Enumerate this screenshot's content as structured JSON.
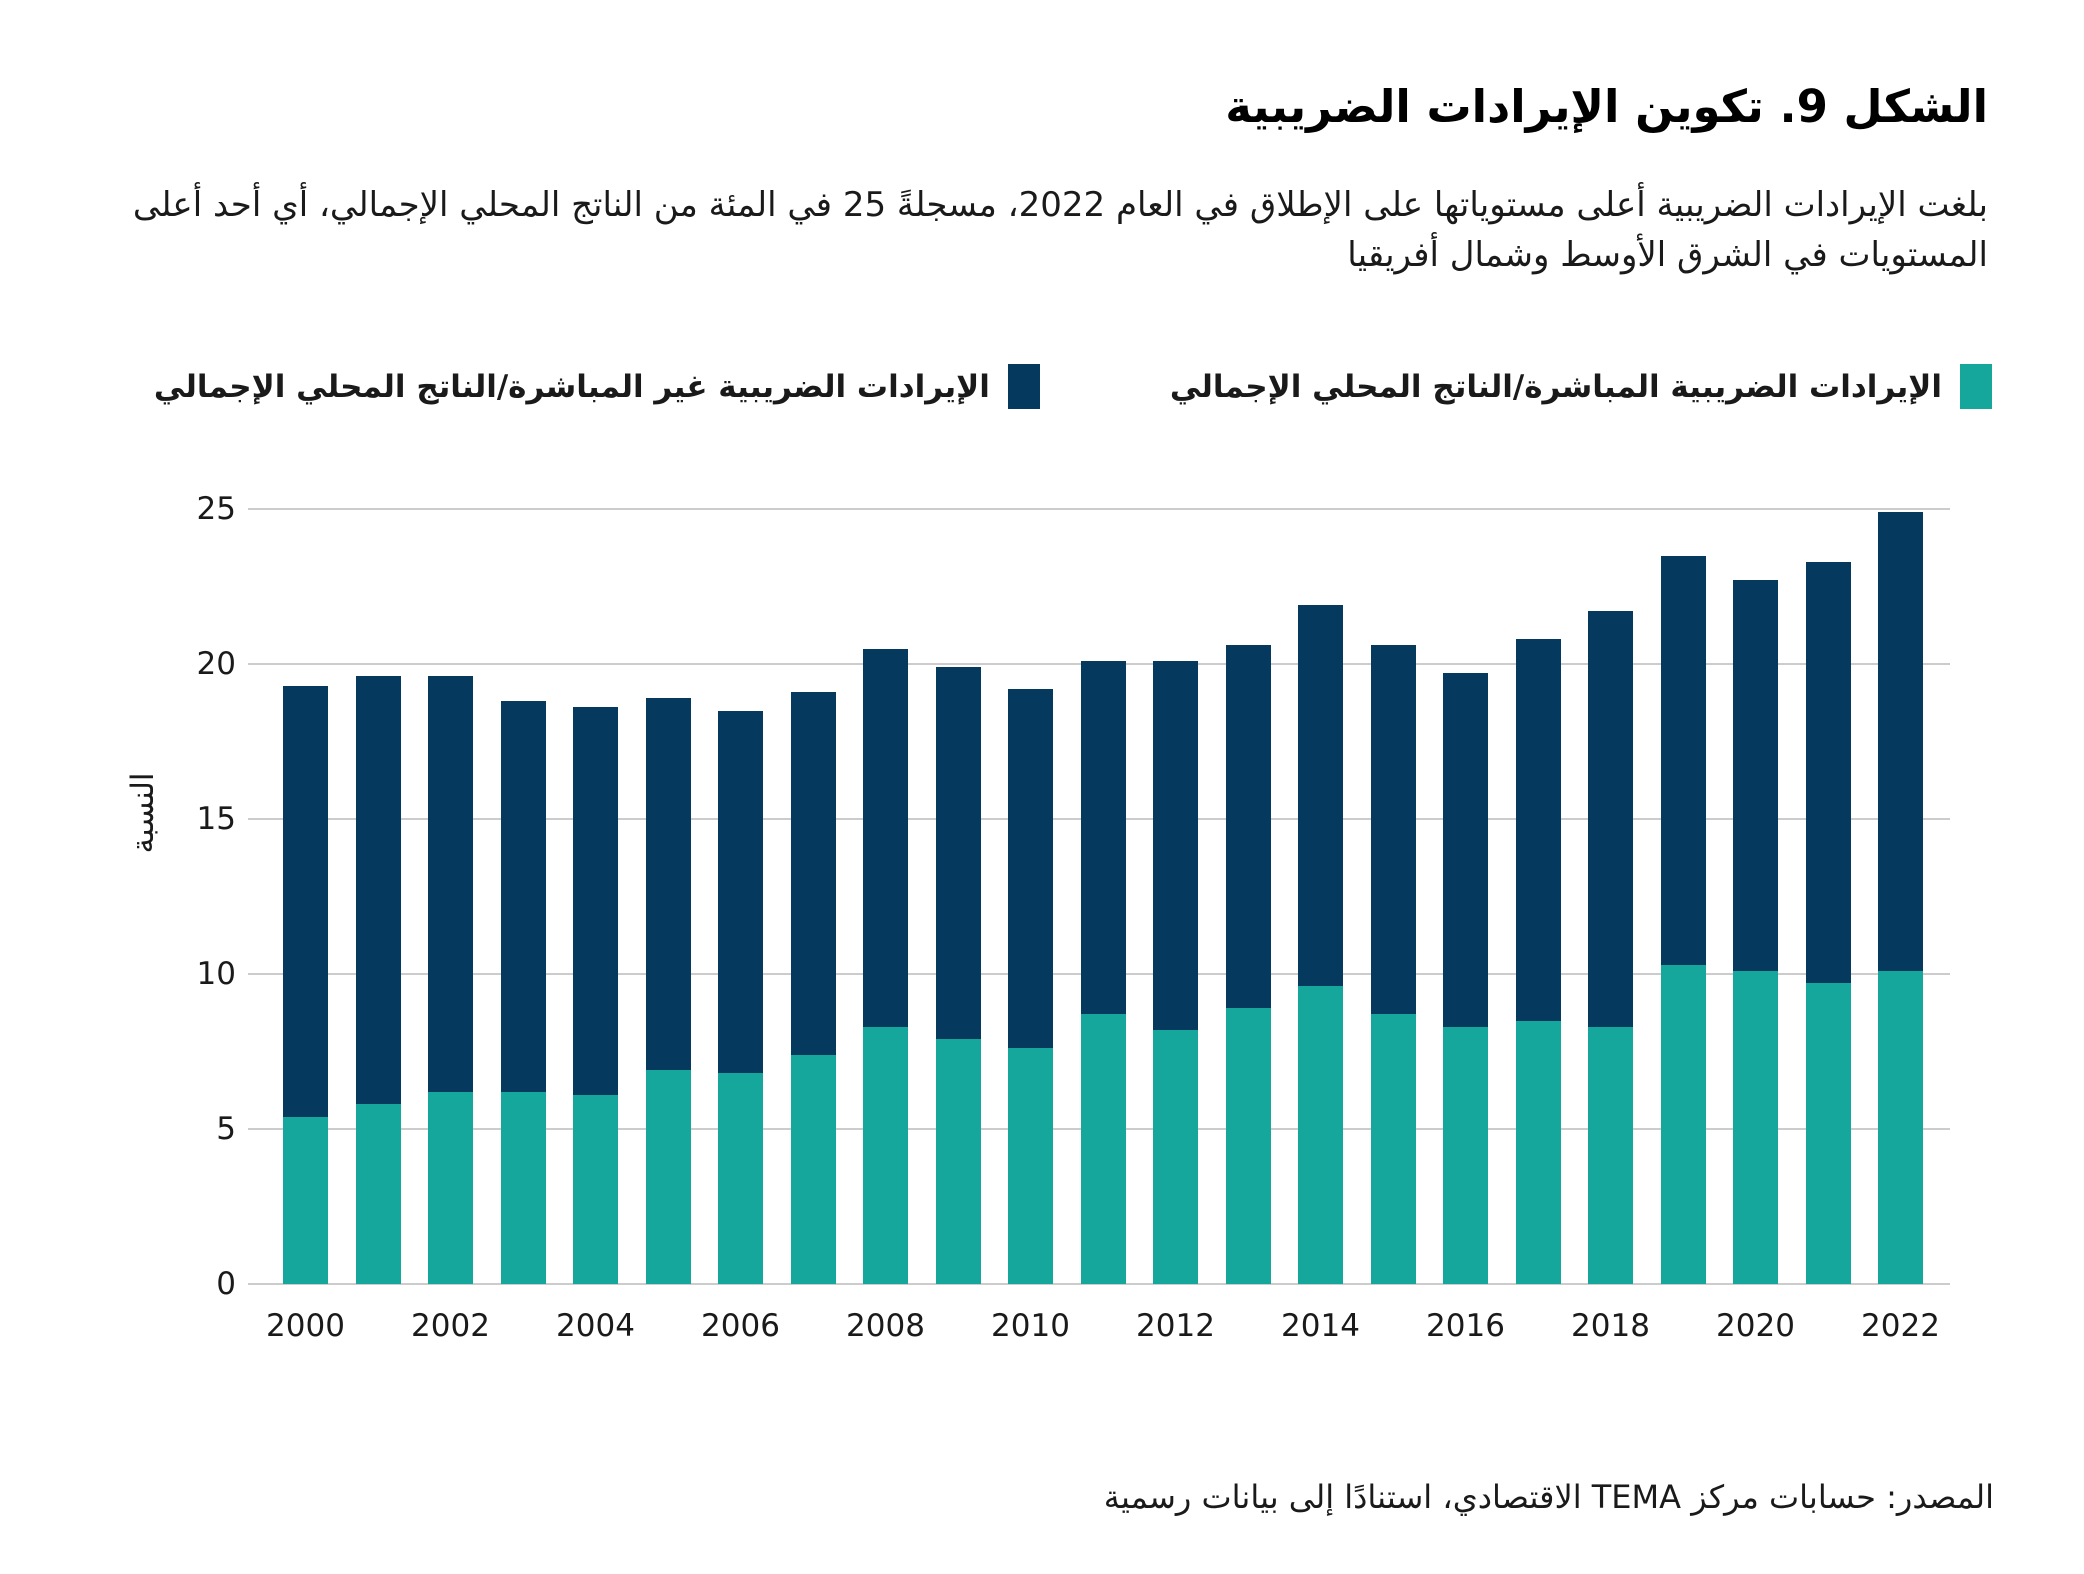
{
  "title": "الشكل 9. تكوين الإيرادات الضريبية",
  "subtitle": "بلغت الإيرادات الضريبية أعلى مستوياتها على الإطلاق في العام 2022، مسجلةً 25 في المئة من الناتج المحلي الإجمالي، أي أحد أعلى المستويات في الشرق الأوسط وشمال أفريقيا",
  "source": "المصدر: حسابات مركز TEMA الاقتصادي، استنادًا إلى بيانات رسمية",
  "colors": {
    "direct_teal": "#16A79C",
    "indirect_navy": "#053A5E",
    "gridline": "#cccccc",
    "text": "#1a1a1a"
  },
  "legend": [
    {
      "series": "direct",
      "label": "الإيرادات الضريبية المباشرة/الناتج المحلي الإجمالي",
      "color": "#16A79C"
    },
    {
      "series": "indirect",
      "label": "الإيرادات الضريبية غير المباشرة/الناتج المحلي الإجمالي",
      "color": "#053A5E"
    }
  ],
  "chart_data": {
    "type": "bar",
    "stacked": true,
    "title": "",
    "xlabel": "",
    "ylabel": "النسبة",
    "ylim": [
      0,
      25
    ],
    "yticks": [
      0,
      5,
      10,
      15,
      20,
      25
    ],
    "xtick_years": [
      2000,
      2002,
      2004,
      2006,
      2008,
      2010,
      2012,
      2014,
      2016,
      2018,
      2020,
      2022
    ],
    "grid": "horizontal",
    "legend_position": "top",
    "categories": [
      2000,
      2001,
      2002,
      2003,
      2004,
      2005,
      2006,
      2007,
      2008,
      2009,
      2010,
      2011,
      2012,
      2013,
      2014,
      2015,
      2016,
      2017,
      2018,
      2019,
      2020,
      2021,
      2022
    ],
    "series": [
      {
        "name": "الإيرادات الضريبية المباشرة/الناتج المحلي الإجمالي",
        "color": "#16A79C",
        "values": [
          5.4,
          5.8,
          6.2,
          6.2,
          6.1,
          6.9,
          6.8,
          7.4,
          8.3,
          7.9,
          7.6,
          8.7,
          8.2,
          8.9,
          9.6,
          8.7,
          8.3,
          8.5,
          8.3,
          10.3,
          10.1,
          9.7,
          10.1
        ]
      },
      {
        "name": "الإيرادات الضريبية غير المباشرة/الناتج المحلي الإجمالي",
        "color": "#053A5E",
        "values": [
          13.9,
          13.8,
          13.4,
          12.6,
          12.5,
          12.0,
          11.7,
          11.7,
          12.2,
          12.0,
          11.6,
          11.4,
          11.9,
          11.7,
          12.3,
          11.9,
          11.4,
          12.3,
          13.4,
          13.2,
          12.6,
          13.6,
          14.8
        ]
      }
    ],
    "totals": [
      19.3,
      19.6,
      19.6,
      18.8,
      18.6,
      18.9,
      18.5,
      19.1,
      20.5,
      19.9,
      19.2,
      20.1,
      20.1,
      20.6,
      21.9,
      20.6,
      19.7,
      20.8,
      21.7,
      23.5,
      22.7,
      23.3,
      24.9
    ]
  }
}
